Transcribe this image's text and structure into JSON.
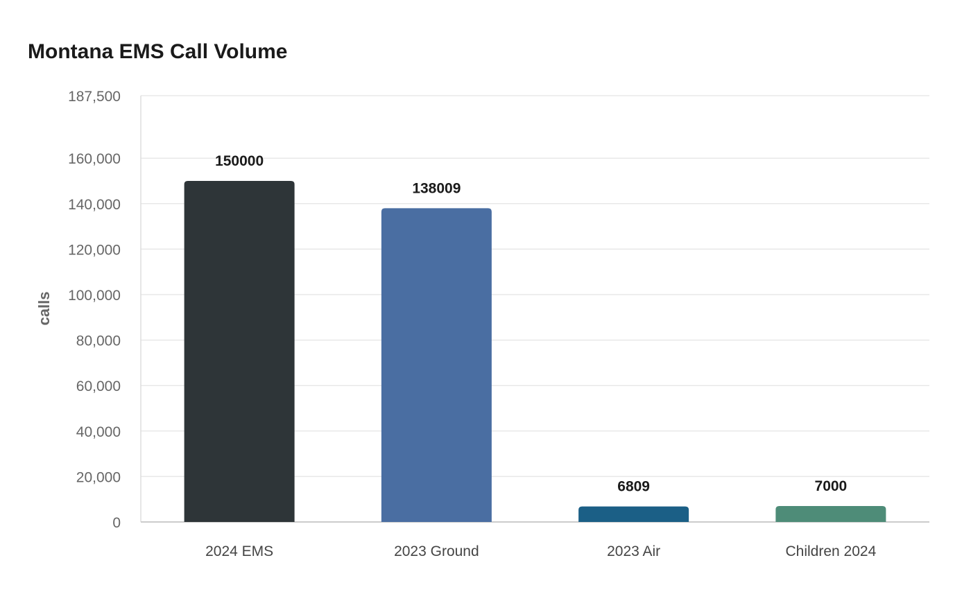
{
  "chart_data": {
    "type": "bar",
    "title": "Montana EMS Call Volume",
    "xlabel": "",
    "ylabel": "calls",
    "categories": [
      "2024 EMS",
      "2023 Ground",
      "2023 Air",
      "Children 2024"
    ],
    "values": [
      150000,
      138009,
      6809,
      7000
    ],
    "data_labels": [
      "150000",
      "138009",
      "6809",
      "7000"
    ],
    "bar_colors": [
      "#2e3538",
      "#4a6ea2",
      "#1b5f86",
      "#4e8c78"
    ],
    "ylim": [
      0,
      187500
    ],
    "yticks": [
      0,
      20000,
      40000,
      60000,
      80000,
      100000,
      120000,
      140000,
      160000,
      187500
    ],
    "ytick_labels": [
      "0",
      "20,000",
      "40,000",
      "60,000",
      "80,000",
      "100,000",
      "120,000",
      "140,000",
      "160,000",
      "187,500"
    ],
    "grid": true,
    "legend": "none"
  }
}
